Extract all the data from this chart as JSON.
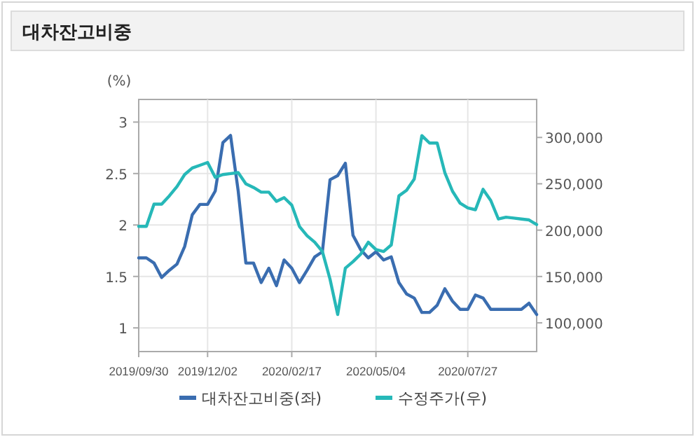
{
  "chart_data": {
    "type": "line",
    "title": "대차잔고비중",
    "ylabel": "(%)",
    "x": [
      "2019-09-30",
      "2019-10-07",
      "2019-10-14",
      "2019-10-21",
      "2019-10-28",
      "2019-11-04",
      "2019-11-11",
      "2019-11-18",
      "2019-11-25",
      "2019-12-02",
      "2019-12-09",
      "2019-12-16",
      "2019-12-23",
      "2019-12-30",
      "2020-01-06",
      "2020-01-13",
      "2020-01-20",
      "2020-01-27",
      "2020-02-03",
      "2020-02-10",
      "2020-02-17",
      "2020-02-24",
      "2020-03-02",
      "2020-03-09",
      "2020-03-16",
      "2020-03-23",
      "2020-03-30",
      "2020-04-06",
      "2020-04-13",
      "2020-04-20",
      "2020-04-27",
      "2020-05-04",
      "2020-05-11",
      "2020-05-18",
      "2020-05-25",
      "2020-06-01",
      "2020-06-08",
      "2020-06-15",
      "2020-06-22",
      "2020-06-29",
      "2020-07-06",
      "2020-07-13",
      "2020-07-20",
      "2020-07-27",
      "2020-08-03",
      "2020-08-10",
      "2020-08-17",
      "2020-08-24",
      "2020-08-31",
      "2020-09-07",
      "2020-09-14",
      "2020-09-21",
      "2020-09-28"
    ],
    "series": [
      {
        "name": "대차잔고비중(좌)",
        "color": "#3a6db0",
        "values": [
          1.68,
          1.68,
          1.63,
          1.49,
          1.56,
          1.62,
          1.79,
          2.1,
          2.2,
          2.2,
          2.33,
          2.8,
          2.87,
          2.33,
          1.63,
          1.63,
          1.44,
          1.58,
          1.41,
          1.66,
          1.58,
          1.44,
          1.56,
          1.69,
          1.74,
          2.44,
          2.48,
          2.6,
          1.9,
          1.76,
          1.68,
          1.74,
          1.66,
          1.69,
          1.44,
          1.33,
          1.29,
          1.15,
          1.15,
          1.22,
          1.38,
          1.26,
          1.18,
          1.18,
          1.32,
          1.29,
          1.18,
          1.18,
          1.18,
          1.18,
          1.18,
          1.24,
          1.13
        ]
      },
      {
        "name": "수정주가(우)",
        "color": "#26b8b8",
        "axis": "y2",
        "values": [
          204000,
          204000,
          228000,
          228000,
          237000,
          247000,
          260000,
          267000,
          270000,
          273000,
          257000,
          260000,
          261000,
          262000,
          250000,
          246000,
          241000,
          241000,
          231000,
          235000,
          227000,
          204000,
          194000,
          187000,
          177000,
          147000,
          109000,
          159000,
          166000,
          174000,
          187000,
          179000,
          177000,
          184000,
          237000,
          243000,
          255000,
          302000,
          294000,
          294000,
          262000,
          242000,
          229000,
          224000,
          222000,
          244000,
          232000,
          212000,
          214000,
          213000,
          212000,
          211000,
          206000
        ]
      }
    ],
    "xlim": [
      "2019-09-30",
      "2020-09-28"
    ],
    "xticks": [
      {
        "value": "2019-09-30",
        "label": "2019/09/30"
      },
      {
        "value": "2019-12-02",
        "label": "2019/12/02"
      },
      {
        "value": "2020-02-17",
        "label": "2020/02/17"
      },
      {
        "value": "2020-05-04",
        "label": "2020/05/04"
      },
      {
        "value": "2020-07-27",
        "label": "2020/07/27"
      }
    ],
    "ylim": [
      0.77,
      3.22
    ],
    "yticks": [
      1,
      1.5,
      2,
      2.5,
      3
    ],
    "y2lim": [
      69000,
      341000
    ],
    "y2ticks": [
      {
        "value": 100000,
        "label": "100,000"
      },
      {
        "value": 150000,
        "label": "150,000"
      },
      {
        "value": 200000,
        "label": "200,000"
      },
      {
        "value": 250000,
        "label": "250,000"
      },
      {
        "value": 300000,
        "label": "300,000"
      }
    ],
    "grid": true,
    "legend": "bottom"
  }
}
